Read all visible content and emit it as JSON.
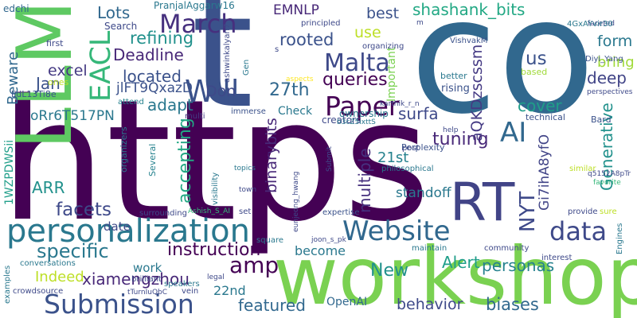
{
  "words": [
    {
      "text": "https",
      "color": "#440154",
      "v": false
    },
    {
      "text": "t",
      "color": "#3b528b",
      "v": false
    },
    {
      "text": "co",
      "color": "#31688e",
      "v": false
    },
    {
      "text": "workshop",
      "color": "#7ad151",
      "v": false
    },
    {
      "text": "LLM",
      "color": "#5ec962",
      "v": true
    },
    {
      "text": "RT",
      "color": "#414487",
      "v": false
    },
    {
      "text": "personalization",
      "color": "#2a788e",
      "v": false
    },
    {
      "text": "Submission",
      "color": "#3b528b",
      "v": false
    },
    {
      "text": "Website",
      "color": "#31688e",
      "v": false
    },
    {
      "text": "data",
      "color": "#3e4989",
      "v": false
    },
    {
      "text": "Paper",
      "color": "#440154",
      "v": false
    },
    {
      "text": "AI",
      "color": "#31688e",
      "v": false
    },
    {
      "text": "amp",
      "color": "#440154",
      "v": false
    },
    {
      "text": "Will",
      "color": "#3b528b",
      "v": false
    },
    {
      "text": "EACL",
      "color": "#35b779",
      "v": true
    },
    {
      "text": "March",
      "color": "#46307e",
      "v": false
    },
    {
      "text": "Malta",
      "color": "#3e4989",
      "v": false
    },
    {
      "text": "instruction",
      "color": "#440154",
      "v": false
    },
    {
      "text": "xiamengzhou",
      "color": "#482878",
      "v": false
    },
    {
      "text": "NYT",
      "color": "#3e4989",
      "v": true
    },
    {
      "text": "specific",
      "color": "#2a788e",
      "v": false
    },
    {
      "text": "Indeed",
      "color": "#bddf26",
      "v": false
    },
    {
      "text": "shashank_bits",
      "color": "#22a884",
      "v": false
    },
    {
      "text": "facets",
      "color": "#3e4989",
      "v": false
    },
    {
      "text": "tuning",
      "color": "#482878",
      "v": false
    },
    {
      "text": "personas",
      "color": "#26828e",
      "v": false
    },
    {
      "text": "accepting",
      "color": "#22a884",
      "v": true
    },
    {
      "text": "multiple",
      "color": "#46307e",
      "v": true
    },
    {
      "text": "Alert",
      "color": "#1f9e89",
      "v": false
    },
    {
      "text": "New",
      "color": "#21918c",
      "v": false
    },
    {
      "text": "featured",
      "color": "#31688e",
      "v": false
    },
    {
      "text": "behavior",
      "color": "#3e4989",
      "v": false
    },
    {
      "text": "biases",
      "color": "#31688e",
      "v": false
    },
    {
      "text": "queries",
      "color": "#440154",
      "v": false
    },
    {
      "text": "refining",
      "color": "#21918c",
      "v": false
    },
    {
      "text": "Deadline",
      "color": "#482878",
      "v": false
    },
    {
      "text": "rooted",
      "color": "#3b528b",
      "v": false
    },
    {
      "text": "27th",
      "color": "#31688e",
      "v": false
    },
    {
      "text": "Generative",
      "color": "#21918c",
      "v": true
    },
    {
      "text": "us",
      "color": "#3b528b",
      "v": false
    },
    {
      "text": "deep",
      "color": "#414487",
      "v": false
    },
    {
      "text": "surfa",
      "color": "#3e4989",
      "v": false
    },
    {
      "text": "cover",
      "color": "#1f9e89",
      "v": false
    },
    {
      "text": "aQKDzscssm",
      "color": "#443983",
      "v": true
    },
    {
      "text": "binarybits",
      "color": "#482878",
      "v": true
    },
    {
      "text": "Gi7ihA8yfO",
      "color": "#414487",
      "v": true
    },
    {
      "text": "ARR",
      "color": "#21918c",
      "v": false
    },
    {
      "text": "Lots",
      "color": "#31688e",
      "v": false
    },
    {
      "text": "excel",
      "color": "#443983",
      "v": false
    },
    {
      "text": "Jan",
      "color": "#3b528b",
      "v": false
    },
    {
      "text": "Beware",
      "color": "#31688e",
      "v": true
    },
    {
      "text": "adapt",
      "color": "#2a788e",
      "v": false
    },
    {
      "text": "Don",
      "color": "#3e4989",
      "v": false
    },
    {
      "text": "located",
      "color": "#3b528b",
      "v": false
    },
    {
      "text": "jlFT9QxazD",
      "color": "#3b528b",
      "v": false
    },
    {
      "text": "oRr6T517PN",
      "color": "#2a788e",
      "v": false
    },
    {
      "text": "EMNLP",
      "color": "#482878",
      "v": false
    },
    {
      "text": "best",
      "color": "#3b528b",
      "v": false
    },
    {
      "text": "use",
      "color": "#bddf26",
      "v": false
    },
    {
      "text": "form",
      "color": "#2a788e",
      "v": false
    },
    {
      "text": "bring",
      "color": "#a0da39",
      "v": false
    },
    {
      "text": "standoff",
      "color": "#2a788e",
      "v": false
    },
    {
      "text": "21st",
      "color": "#26828e",
      "v": false
    },
    {
      "text": "become",
      "color": "#2a788e",
      "v": false
    },
    {
      "text": "22nd",
      "color": "#2a788e",
      "v": false
    },
    {
      "text": "OpenAI",
      "color": "#31688e",
      "v": false
    },
    {
      "text": "Important",
      "color": "#7ad151",
      "v": true
    },
    {
      "text": "1WZPDWSii",
      "color": "#1f9e89",
      "v": true
    },
    {
      "text": "date",
      "color": "#3e4989",
      "v": false
    },
    {
      "text": "work",
      "color": "#2a788e",
      "v": false
    },
    {
      "text": "Check",
      "color": "#2a788e",
      "v": false
    },
    {
      "text": "PranjalAggarw16",
      "color": "#2a788e",
      "v": false
    },
    {
      "text": "edchi",
      "color": "#31688e",
      "v": false
    },
    {
      "text": "Search",
      "color": "#3e4989",
      "v": false
    },
    {
      "text": "first",
      "color": "#3e4989",
      "v": false
    },
    {
      "text": "ones",
      "color": "#bddf26",
      "v": false
    },
    {
      "text": "IjdL13Ti8e",
      "color": "#3b528b",
      "v": false
    },
    {
      "text": "attend",
      "color": "#26828e",
      "v": false
    },
    {
      "text": "multi",
      "color": "#443983",
      "v": false
    },
    {
      "text": "Several",
      "color": "#26828e",
      "v": true
    },
    {
      "text": "organizers",
      "color": "#2a788e",
      "v": true
    },
    {
      "text": "ashwinkalyan7",
      "color": "#3e4989",
      "v": true
    },
    {
      "text": "Gen",
      "color": "#2a788e",
      "v": true
    },
    {
      "text": "principled",
      "color": "#3e4989",
      "v": false
    },
    {
      "text": "organizing",
      "color": "#3e4989",
      "v": false
    },
    {
      "text": "ownership",
      "color": "#2a788e",
      "v": false
    },
    {
      "text": "creators",
      "color": "#3e4989",
      "v": false
    },
    {
      "text": "immerse",
      "color": "#3b528b",
      "v": false
    },
    {
      "text": "aspects",
      "color": "#fde725",
      "v": false
    },
    {
      "text": "VishvakM",
      "color": "#3b528b",
      "v": false
    },
    {
      "text": "better",
      "color": "#2a788e",
      "v": false
    },
    {
      "text": "rising",
      "color": "#3b528b",
      "v": false
    },
    {
      "text": "based",
      "color": "#a0da39",
      "v": false
    },
    {
      "text": "Diyi_Yang",
      "color": "#3b528b",
      "v": false
    },
    {
      "text": "perspectives",
      "color": "#3e4989",
      "v": false
    },
    {
      "text": "technical",
      "color": "#3b528b",
      "v": false
    },
    {
      "text": "karthik_r_n",
      "color": "#3e4989",
      "v": false
    },
    {
      "text": "b3cZ5ixttS",
      "color": "#2a788e",
      "v": false
    },
    {
      "text": "help",
      "color": "#3e4989",
      "v": false
    },
    {
      "text": "Bard",
      "color": "#3b528b",
      "v": false
    },
    {
      "text": "q5152A8pTr",
      "color": "#3e4989",
      "v": false
    },
    {
      "text": "favorite",
      "color": "#35b779",
      "v": false
    },
    {
      "text": "faceted",
      "color": "#3e4989",
      "v": false
    },
    {
      "text": "4GxAYvir30",
      "color": "#2a788e",
      "v": false
    },
    {
      "text": "m",
      "color": "#3e4989",
      "v": false
    },
    {
      "text": "Perplexity",
      "color": "#3b528b",
      "v": false
    },
    {
      "text": "post",
      "color": "#3e4989",
      "v": false
    },
    {
      "text": "philosophical",
      "color": "#2a788e",
      "v": false
    },
    {
      "text": "similar",
      "color": "#bddf26",
      "v": false
    },
    {
      "text": "sure",
      "color": "#bddf26",
      "v": false
    },
    {
      "text": "provide",
      "color": "#3e4989",
      "v": false
    },
    {
      "text": "Engines",
      "color": "#2a788e",
      "v": true
    },
    {
      "text": "interest",
      "color": "#3e4989",
      "v": false
    },
    {
      "text": "maintain",
      "color": "#2a788e",
      "v": false
    },
    {
      "text": "community",
      "color": "#3e4989",
      "v": false
    },
    {
      "text": "expertise",
      "color": "#3b528b",
      "v": false
    },
    {
      "text": "joon_s_pk",
      "color": "#3e4989",
      "v": false
    },
    {
      "text": "square",
      "color": "#2a788e",
      "v": false
    },
    {
      "text": "eunjeong_hwang",
      "color": "#3e4989",
      "v": true
    },
    {
      "text": "Submit",
      "color": "#3e4989",
      "v": true
    },
    {
      "text": "set",
      "color": "#3e4989",
      "v": false
    },
    {
      "text": "Ashish_S_AI",
      "color": "#35b779",
      "v": false
    },
    {
      "text": "town",
      "color": "#3e4989",
      "v": false
    },
    {
      "text": "topics",
      "color": "#2a788e",
      "v": false
    },
    {
      "text": "visibility",
      "color": "#2a788e",
      "v": true
    },
    {
      "text": "surrounding",
      "color": "#3e4989",
      "v": false
    },
    {
      "text": "speakers",
      "color": "#2a788e",
      "v": false
    },
    {
      "text": "brilliant",
      "color": "#3e4989",
      "v": false
    },
    {
      "text": "conversations",
      "color": "#2a788e",
      "v": false
    },
    {
      "text": "crowdsource",
      "color": "#3e4989",
      "v": false
    },
    {
      "text": "examples",
      "color": "#2a788e",
      "v": true
    },
    {
      "text": "vein",
      "color": "#3e4989",
      "v": false
    },
    {
      "text": "legal",
      "color": "#3e4989",
      "v": false
    },
    {
      "text": "tTurnIuQbC",
      "color": "#3e4989",
      "v": false
    },
    {
      "text": "s",
      "color": "#3e4989",
      "v": false
    }
  ]
}
